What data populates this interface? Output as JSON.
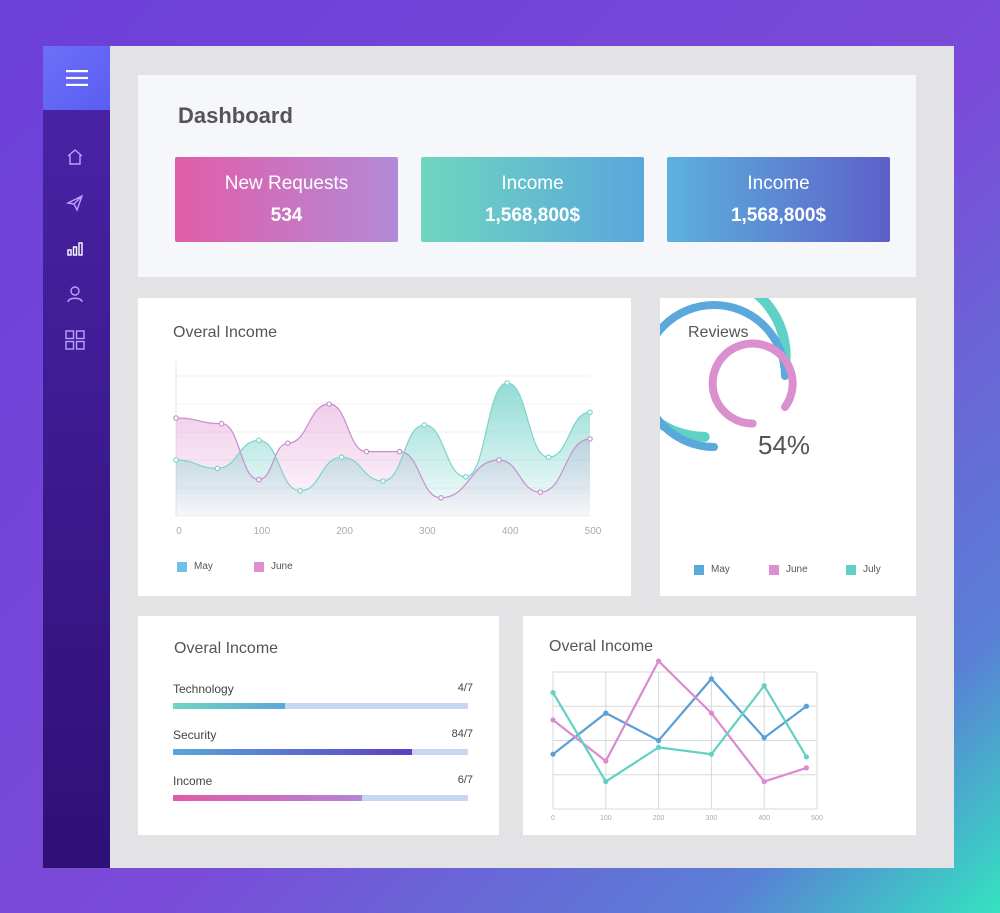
{
  "sidebar": {
    "icons": [
      "menu-icon",
      "home-icon",
      "send-icon",
      "bar-chart-icon",
      "user-icon",
      "grid-icon"
    ]
  },
  "header": {
    "title": "Dashboard",
    "cards": [
      {
        "label": "New Requests",
        "value": "534"
      },
      {
        "label": "Income",
        "value": "1,568,800$"
      },
      {
        "label": "Income",
        "value": "1,568,800$"
      }
    ]
  },
  "area_card": {
    "title": "Overal Income",
    "legend": [
      {
        "name": "May",
        "color": "#6cc0ea"
      },
      {
        "name": "June",
        "color": "#df8fcf"
      }
    ]
  },
  "reviews_card": {
    "title": "Reviews",
    "center_text": "54%",
    "legend": [
      {
        "name": "May",
        "color": "#5aa8dc"
      },
      {
        "name": "June",
        "color": "#da8fce"
      },
      {
        "name": "July",
        "color": "#5fd1c5"
      }
    ]
  },
  "bars_card": {
    "title": "Overal Income",
    "rows": [
      {
        "name": "Technology",
        "ratio": "4/7",
        "progress": 0.38,
        "gradient": [
          "#6fd6bf",
          "#5aa6dc"
        ]
      },
      {
        "name": "Security",
        "ratio": "84/7",
        "progress": 0.81,
        "gradient": [
          "#5aa6dc",
          "#5b3fc4"
        ]
      },
      {
        "name": "Income",
        "ratio": "6/7",
        "progress": 0.64,
        "gradient": [
          "#e05aa6",
          "#b384d8"
        ]
      }
    ]
  },
  "line_card": {
    "title": "Overal Income"
  },
  "chart_data": [
    {
      "type": "area",
      "title": "Overal Income",
      "xlabel": "",
      "ylabel": "",
      "x_ticks": [
        "0",
        "100",
        "200",
        "300",
        "400",
        "500"
      ],
      "xlim": [
        0,
        500
      ],
      "ylim": [
        0,
        100
      ],
      "grid": true,
      "legend": "bottom-left",
      "series": [
        {
          "name": "May",
          "color": "#6fd0c8",
          "x": [
            0,
            50,
            100,
            150,
            200,
            250,
            300,
            350,
            400,
            450,
            500
          ],
          "y": [
            40,
            34,
            54,
            18,
            42,
            25,
            65,
            28,
            95,
            42,
            74
          ]
        },
        {
          "name": "June",
          "color": "#df8fcf",
          "x": [
            0,
            55,
            100,
            135,
            185,
            230,
            270,
            320,
            390,
            440,
            500
          ],
          "y": [
            70,
            66,
            26,
            52,
            80,
            46,
            46,
            13,
            40,
            17,
            55
          ]
        }
      ]
    },
    {
      "type": "pie",
      "title": "Reviews",
      "center_label": "54%",
      "legend": "bottom",
      "series": [
        {
          "name": "May",
          "value": 0.75,
          "color": "#5aa8dc"
        },
        {
          "name": "June",
          "value": 0.85,
          "color": "#da8fce"
        },
        {
          "name": "July",
          "value": 0.77,
          "color": "#5fd1c5"
        }
      ]
    },
    {
      "type": "line",
      "title": "Overal Income",
      "x_ticks": [
        "0",
        "100",
        "200",
        "300",
        "400",
        "500"
      ],
      "xlim": [
        0,
        500
      ],
      "ylim": [
        0,
        100
      ],
      "grid": true,
      "series": [
        {
          "color": "#5aa0d6",
          "x": [
            0,
            100,
            200,
            300,
            400,
            480
          ],
          "y": [
            40,
            70,
            50,
            95,
            52,
            75
          ]
        },
        {
          "color": "#d98bd0",
          "x": [
            0,
            100,
            200,
            300,
            400,
            480
          ],
          "y": [
            65,
            35,
            108,
            70,
            20,
            30
          ]
        },
        {
          "color": "#62d1c2",
          "x": [
            0,
            100,
            200,
            300,
            400,
            480
          ],
          "y": [
            85,
            20,
            45,
            40,
            90,
            38
          ]
        }
      ]
    }
  ]
}
